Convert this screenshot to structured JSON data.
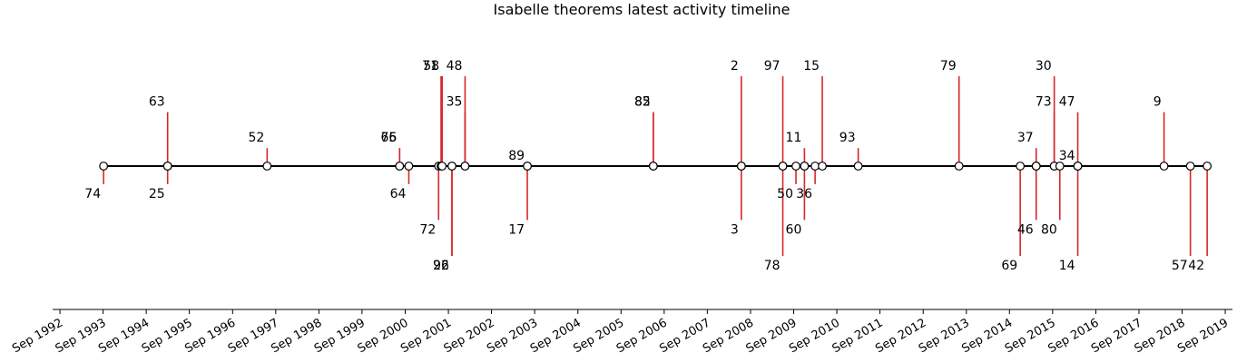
{
  "chart_data": {
    "type": "timeline",
    "title": "Isabelle theorems latest activity timeline",
    "x_ticks": [
      "Sep 1992",
      "Sep 1993",
      "Sep 1994",
      "Sep 1995",
      "Sep 1996",
      "Sep 1997",
      "Sep 1998",
      "Sep 1999",
      "Sep 2000",
      "Sep 2001",
      "Sep 2002",
      "Sep 2003",
      "Sep 2004",
      "Sep 2005",
      "Sep 2006",
      "Sep 2007",
      "Sep 2008",
      "Sep 2009",
      "Sep 2010",
      "Sep 2011",
      "Sep 2012",
      "Sep 2013",
      "Sep 2014",
      "Sep 2015",
      "Sep 2016",
      "Sep 2017",
      "Sep 2018",
      "Sep 2019"
    ],
    "xlim": [
      "1992-07-01",
      "2019-11-01"
    ],
    "colors": {
      "stem": "#d62728",
      "line": "#000000",
      "marker_fill": "#ffffff"
    },
    "events": [
      {
        "date": "1993-09-05",
        "label": "74",
        "level": -0.5
      },
      {
        "date": "1995-03-01",
        "label": "63",
        "level": 1.5
      },
      {
        "date": "1995-03-01",
        "label": "25",
        "level": -0.5
      },
      {
        "date": "1997-06-20",
        "label": "52",
        "level": 0.5
      },
      {
        "date": "2000-07-15",
        "label": "76",
        "level": 0.5
      },
      {
        "date": "2000-07-15",
        "label": "65",
        "level": 0.5
      },
      {
        "date": "2000-10-01",
        "label": "64",
        "level": -0.5
      },
      {
        "date": "2001-06-10",
        "label": "72",
        "level": -1.5
      },
      {
        "date": "2001-07-01",
        "label": "71",
        "level": 2.5
      },
      {
        "date": "2001-07-10",
        "label": "58",
        "level": 2.5
      },
      {
        "date": "2001-10-01",
        "label": "92",
        "level": -2.5
      },
      {
        "date": "2001-10-01",
        "label": "26",
        "level": -2.5
      },
      {
        "date": "2002-01-20",
        "label": "48",
        "level": 2.5
      },
      {
        "date": "2002-01-20",
        "label": "35",
        "level": 1.5
      },
      {
        "date": "2003-07-01",
        "label": "89",
        "level": 0
      },
      {
        "date": "2003-07-01",
        "label": "17",
        "level": -1.5
      },
      {
        "date": "2006-06-01",
        "label": "82",
        "level": 1.5
      },
      {
        "date": "2006-06-01",
        "label": "85",
        "level": 1.5
      },
      {
        "date": "2008-06-15",
        "label": "2",
        "level": 2.5
      },
      {
        "date": "2008-06-15",
        "label": "3",
        "level": -1.5
      },
      {
        "date": "2009-06-01",
        "label": "97",
        "level": 2.5
      },
      {
        "date": "2009-06-01",
        "label": "78",
        "level": -2.5
      },
      {
        "date": "2009-09-20",
        "label": "50",
        "level": -0.5
      },
      {
        "date": "2009-12-01",
        "label": "11",
        "level": 0.5
      },
      {
        "date": "2009-12-01",
        "label": "60",
        "level": -1.5
      },
      {
        "date": "2010-03-01",
        "label": "36",
        "level": -0.5
      },
      {
        "date": "2010-05-01",
        "label": "15",
        "level": 2.5
      },
      {
        "date": "2011-03-01",
        "label": "93",
        "level": 0.5
      },
      {
        "date": "2013-07-01",
        "label": "79",
        "level": 2.5
      },
      {
        "date": "2014-12-01",
        "label": "69",
        "level": -2.5
      },
      {
        "date": "2015-04-15",
        "label": "37",
        "level": 0.5
      },
      {
        "date": "2015-04-15",
        "label": "46",
        "level": -1.5
      },
      {
        "date": "2015-09-15",
        "label": "30",
        "level": 2.5
      },
      {
        "date": "2015-09-15",
        "label": "73",
        "level": 1.5
      },
      {
        "date": "2015-11-01",
        "label": "80",
        "level": -1.5
      },
      {
        "date": "2016-04-01",
        "label": "47",
        "level": 1.5
      },
      {
        "date": "2016-04-01",
        "label": "34",
        "level": 0
      },
      {
        "date": "2016-04-01",
        "label": "14",
        "level": -2.5
      },
      {
        "date": "2018-04-01",
        "label": "9",
        "level": 1.5
      },
      {
        "date": "2018-11-10",
        "label": "57",
        "level": -2.5
      },
      {
        "date": "2019-04-01",
        "label": "42",
        "level": -2.5
      }
    ]
  }
}
